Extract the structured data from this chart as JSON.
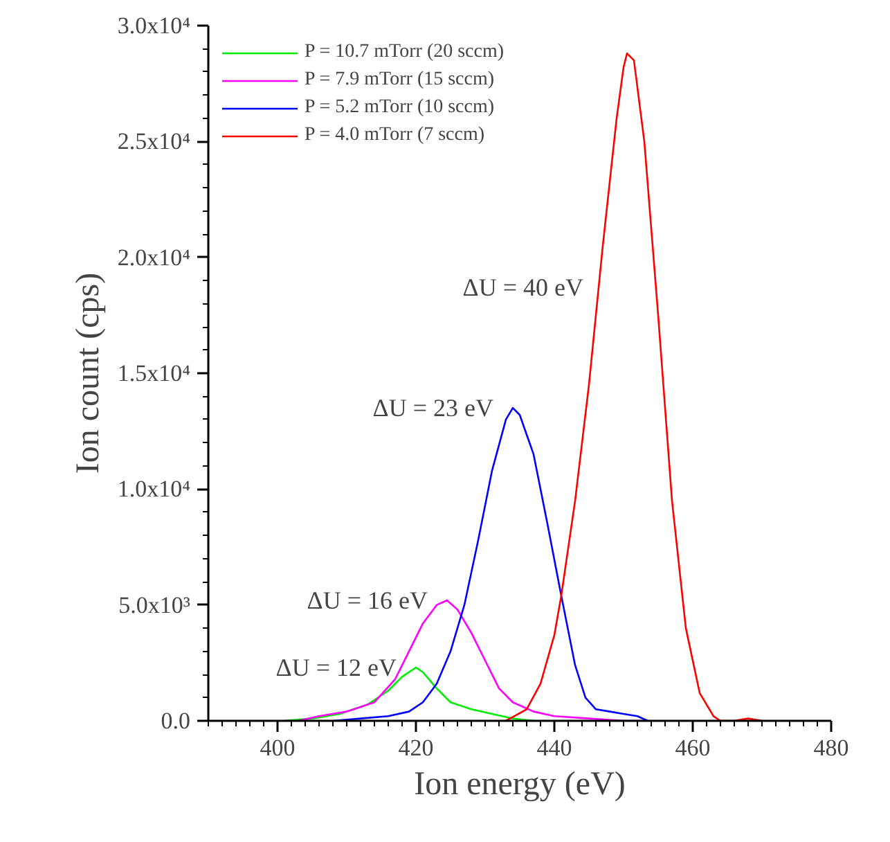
{
  "chart_data": {
    "type": "line",
    "xlabel": "Ion energy (eV)",
    "ylabel": "Ion count (cps)",
    "xlim": [
      390,
      480
    ],
    "xticks": [
      400,
      420,
      440,
      460,
      480
    ],
    "ylim": [
      0,
      30000
    ],
    "yticks": [
      {
        "value": 0,
        "label": "0.0"
      },
      {
        "value": 5000,
        "label": "5.0x10³"
      },
      {
        "value": 10000,
        "label": "1.0x10⁴"
      },
      {
        "value": 15000,
        "label": "1.5x10⁴"
      },
      {
        "value": 20000,
        "label": "2.0x10⁴"
      },
      {
        "value": 25000,
        "label": "2.5x10⁴"
      },
      {
        "value": 30000,
        "label": "3.0x10⁴"
      }
    ],
    "grid": false,
    "legend": "top left",
    "marker": "none",
    "line_style": "solid",
    "series": [
      {
        "name": "P = 10.7 mTorr (20 sccm)",
        "color": "#00ee00",
        "x": [
          401,
          405,
          409,
          413,
          416,
          418,
          420,
          421,
          423,
          425,
          428,
          431,
          434,
          437
        ],
        "values": [
          0,
          100,
          300,
          700,
          1300,
          1900,
          2300,
          2100,
          1400,
          800,
          500,
          300,
          100,
          0
        ]
      },
      {
        "name": "P = 7.9 mTorr (15 sccm)",
        "color": "#ff00ff",
        "x": [
          403,
          406,
          410,
          414,
          417,
          419,
          421,
          423,
          424.5,
          426,
          428,
          430,
          432,
          434,
          437,
          440,
          445,
          450,
          453
        ],
        "values": [
          0,
          200,
          400,
          800,
          1800,
          3000,
          4200,
          5000,
          5200,
          4800,
          3800,
          2600,
          1400,
          800,
          400,
          200,
          100,
          0,
          0
        ]
      },
      {
        "name": "P = 5.2 mTorr (10 sccm)",
        "color": "#0000ff",
        "x": [
          408,
          412,
          416,
          419,
          421,
          423,
          425,
          427,
          429,
          431,
          433,
          434,
          435,
          437,
          439,
          441,
          443,
          444.5,
          446,
          448,
          450,
          452,
          453.5
        ],
        "values": [
          0,
          100,
          200,
          400,
          800,
          1600,
          3000,
          5000,
          7800,
          10800,
          13000,
          13500,
          13200,
          11500,
          8500,
          5400,
          2400,
          1000,
          500,
          400,
          300,
          200,
          0
        ]
      },
      {
        "name": "P = 4.0 mTorr (7 sccm)",
        "color": "#ff0000",
        "x": [
          433,
          436,
          438,
          440,
          441,
          443,
          445,
          447,
          449,
          450,
          450.5,
          451.5,
          453,
          455,
          457,
          459,
          461,
          463,
          464,
          466,
          468,
          470
        ],
        "values": [
          0,
          500,
          1600,
          3700,
          5400,
          9500,
          14500,
          20500,
          26000,
          28200,
          28800,
          28500,
          25000,
          17500,
          9500,
          4000,
          1200,
          200,
          0,
          0,
          100,
          0
        ]
      }
    ],
    "annotations": [
      "ΔU = 40 eV",
      "ΔU = 23 eV",
      "ΔU = 16 eV",
      "ΔU = 12 eV"
    ]
  }
}
